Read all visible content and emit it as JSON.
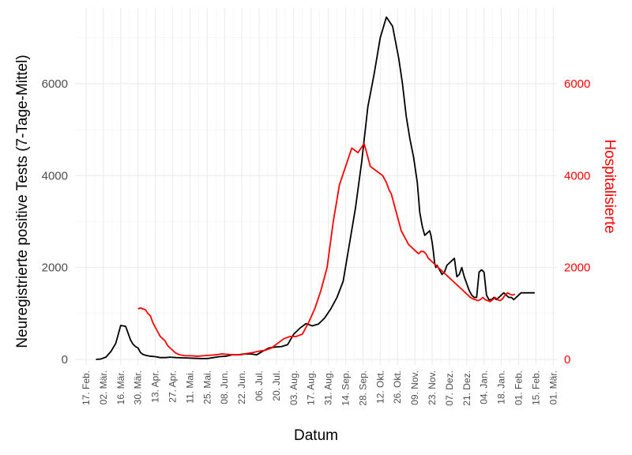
{
  "chart_data": {
    "type": "line",
    "xlabel": "Datum",
    "ylabel": "Neuregistrierte positive Tests (7-Tage-Mittel)",
    "y2label": "Hospitalisierte",
    "x_tick_labels": [
      "17. Feb.",
      "02. Mär.",
      "16. Mär.",
      "30. Mär.",
      "13. Apr.",
      "27. Apr.",
      "11. Mai.",
      "25. Mai.",
      "08. Jun.",
      "22. Jun.",
      "06. Jul.",
      "20. Jul.",
      "03. Aug.",
      "17. Aug.",
      "31. Aug.",
      "14. Sep.",
      "28. Sep.",
      "12. Okt.",
      "26. Okt.",
      "09. Nov.",
      "23. Nov.",
      "07. Dez.",
      "21. Dez.",
      "04. Jan.",
      "18. Jan.",
      "01. Feb.",
      "15. Feb.",
      "01. Mär."
    ],
    "y_ticks": [
      0,
      2000,
      4000,
      6000
    ],
    "y2_ticks": [
      0,
      2000,
      4000,
      6000
    ],
    "ylim": [
      -120,
      7650
    ],
    "y2lim": [
      -120,
      7650
    ],
    "grid": true,
    "colors": {
      "positive_tests": "#000000",
      "hospitalized": "#ff0000",
      "right_axis": "#ff0000"
    },
    "series": [
      {
        "axis": "left",
        "color": "#000000",
        "x_day_offsets": [
          0,
          4,
          8,
          12,
          16,
          20,
          24,
          28,
          30,
          32,
          34,
          36,
          38,
          40,
          42,
          44,
          48,
          52,
          56,
          60,
          65,
          70,
          75,
          80,
          85,
          90,
          95,
          100,
          105,
          110,
          115,
          120,
          125,
          130,
          135,
          140,
          145,
          150,
          155,
          160,
          165,
          170,
          175,
          180,
          185,
          190,
          195,
          200,
          205,
          210,
          215,
          220,
          225,
          230,
          235,
          240,
          245,
          248,
          251,
          254,
          257,
          260,
          262,
          264,
          266,
          268,
          270,
          271,
          272,
          273,
          274,
          275,
          276,
          278,
          280,
          282,
          284,
          286,
          288,
          290,
          292,
          294,
          296,
          298,
          300,
          302,
          304,
          306,
          308,
          310,
          312,
          314,
          316,
          318,
          320,
          322,
          324,
          326,
          328,
          330,
          332,
          334,
          336,
          337,
          338,
          340,
          342,
          344,
          346,
          348,
          350,
          352,
          354,
          355
        ],
        "values": [
          0,
          10,
          50,
          170,
          350,
          740,
          720,
          420,
          330,
          280,
          250,
          150,
          110,
          90,
          80,
          70,
          60,
          40,
          40,
          50,
          40,
          35,
          30,
          25,
          20,
          20,
          40,
          60,
          70,
          100,
          100,
          120,
          120,
          100,
          180,
          250,
          270,
          280,
          320,
          550,
          680,
          780,
          730,
          770,
          900,
          1100,
          1350,
          1700,
          2500,
          3300,
          4300,
          5500,
          6200,
          7000,
          7450,
          7250,
          6550,
          6000,
          5300,
          4800,
          4400,
          3850,
          3200,
          2900,
          2700,
          2750,
          2800,
          2700,
          2550,
          2350,
          2100,
          2000,
          2050,
          1950,
          1850,
          1900,
          2050,
          2100,
          2150,
          2200,
          1800,
          1850,
          2000,
          1800,
          1650,
          1500,
          1400,
          1350,
          1350,
          1900,
          1950,
          1900,
          1400,
          1300,
          1300,
          1350,
          1300,
          1350,
          1400,
          1450,
          1400,
          1350,
          1350,
          1330,
          1300,
          1350,
          1400,
          1450,
          1450,
          1450,
          1450,
          1450,
          1450,
          1450
        ],
        "x_day_offsets_note": ""
      },
      {
        "axis": "right",
        "color": "#ff0000",
        "x_day_offsets": [
          42,
          44,
          46,
          48,
          50,
          52,
          54,
          56,
          58,
          60,
          62,
          64,
          66,
          68,
          70,
          72,
          74,
          76,
          78,
          80,
          85,
          90,
          95,
          100,
          105,
          110,
          115,
          120,
          125,
          130,
          135,
          140,
          145,
          150,
          155,
          160,
          165,
          170,
          175,
          180,
          185,
          190,
          195,
          200,
          205,
          210,
          215,
          220,
          225,
          230,
          235,
          240,
          243,
          245,
          247,
          249,
          251,
          253,
          255,
          257,
          259,
          261,
          263,
          265,
          267,
          269,
          271,
          273,
          275,
          277,
          279,
          281,
          283,
          285,
          287,
          289,
          291,
          293,
          295,
          297,
          299,
          301,
          303,
          305,
          307,
          309,
          311,
          313,
          315,
          317,
          319,
          321,
          323,
          325,
          327,
          329,
          331,
          333,
          335,
          337,
          339,
          341,
          343,
          345,
          347
        ],
        "values": [
          1100,
          1120,
          1100,
          1080,
          1000,
          950,
          800,
          700,
          600,
          500,
          450,
          400,
          300,
          250,
          200,
          150,
          120,
          100,
          90,
          80,
          80,
          70,
          80,
          90,
          100,
          120,
          110,
          100,
          100,
          130,
          150,
          180,
          200,
          250,
          350,
          450,
          500,
          500,
          550,
          800,
          1100,
          1500,
          2000,
          3000,
          3800,
          4200,
          4600,
          4500,
          4700,
          4200,
          4100,
          4000,
          3850,
          3700,
          3600,
          3400,
          3200,
          3000,
          2800,
          2700,
          2600,
          2500,
          2450,
          2400,
          2350,
          2300,
          2350,
          2350,
          2300,
          2200,
          2150,
          2100,
          2050,
          2000,
          1950,
          1900,
          1850,
          1800,
          1750,
          1700,
          1650,
          1600,
          1550,
          1500,
          1450,
          1400,
          1350,
          1320,
          1300,
          1280,
          1300,
          1350,
          1300,
          1280,
          1260,
          1300,
          1350,
          1300,
          1280,
          1320,
          1400,
          1450,
          1420,
          1400,
          1420
        ]
      }
    ]
  }
}
